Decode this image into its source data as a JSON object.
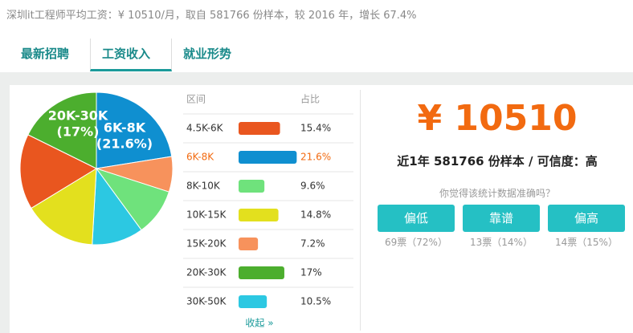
{
  "header": {
    "title": "深圳it工程师平均工资：¥ 10510/月，取自 581766 份样本，较 2016 年，增长 67.4%"
  },
  "tabs": [
    "最新招聘",
    "工资收入",
    "就业形势"
  ],
  "pie_labels": [
    {
      "range": "20K-30K",
      "share": "(17%)"
    },
    {
      "range": "6K-8K",
      "share": "(21.6%)"
    }
  ],
  "table": {
    "header": [
      "区间",
      "占比"
    ],
    "rows": [
      {
        "range": "4.5K-6K",
        "share": 15.4,
        "share_label": "15.4%",
        "color": "#e9561f"
      },
      {
        "range": "6K-8K",
        "share": 21.6,
        "share_label": "21.6%",
        "color": "#0f8fd0"
      },
      {
        "range": "8K-10K",
        "share": 9.6,
        "share_label": "9.6%",
        "color": "#6fe27c"
      },
      {
        "range": "10K-15K",
        "share": 14.8,
        "share_label": "14.8%",
        "color": "#e3e01e"
      },
      {
        "range": "15K-20K",
        "share": 7.2,
        "share_label": "7.2%",
        "color": "#f7925c"
      },
      {
        "range": "20K-30K",
        "share": 17,
        "share_label": "17%",
        "color": "#4cae2e"
      },
      {
        "range": "30K-50K",
        "share": 10.5,
        "share_label": "10.5%",
        "color": "#2cc8e2"
      }
    ],
    "collapse": "收起 »"
  },
  "summary": {
    "salary": "¥ 10510",
    "sample": "近1年 581766 份样本 / 可信度：高",
    "question": "你觉得该统计数据准确吗？",
    "votes": [
      {
        "button": "偏低",
        "count": "69票（72%）"
      },
      {
        "button": "靠谱",
        "count": "13票（14%）"
      },
      {
        "button": "偏高",
        "count": "14票（15%）"
      }
    ]
  }
}
